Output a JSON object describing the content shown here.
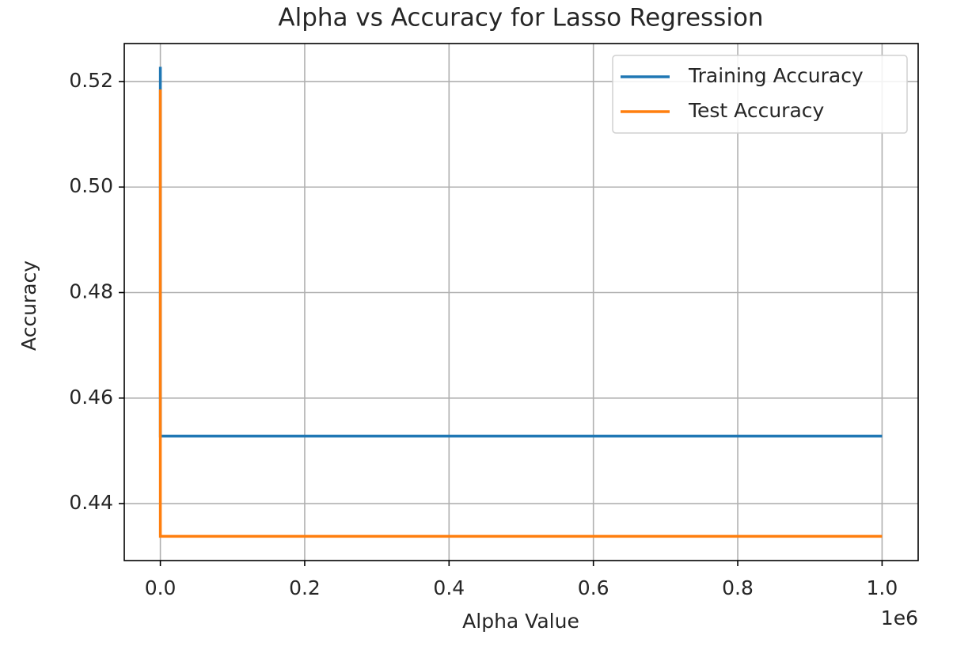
{
  "chart_data": {
    "type": "line",
    "title": "Alpha vs Accuracy for Lasso Regression",
    "x_label": "Alpha Value",
    "y_label": "Accuracy",
    "x_offset_label": "1e6",
    "x": [
      0.001,
      0.01,
      0.1,
      1,
      10,
      100,
      1000,
      10000,
      100000,
      1000000
    ],
    "series": [
      {
        "name": "Training Accuracy",
        "color": "#1f77b4",
        "values": [
          0.5228,
          0.5228,
          0.5226,
          0.4528,
          0.4528,
          0.4528,
          0.4528,
          0.4528,
          0.4528,
          0.4528
        ]
      },
      {
        "name": "Test Accuracy",
        "color": "#ff7f0e",
        "values": [
          0.5185,
          0.5185,
          0.5183,
          0.4338,
          0.4338,
          0.4338,
          0.4338,
          0.4338,
          0.4338,
          0.4338
        ]
      }
    ],
    "xlim": [
      -50000,
      1050000
    ],
    "ylim": [
      0.4292,
      0.5272
    ],
    "xticks": [
      {
        "value": 0,
        "label": "0.0"
      },
      {
        "value": 200000,
        "label": "0.2"
      },
      {
        "value": 400000,
        "label": "0.4"
      },
      {
        "value": 600000,
        "label": "0.6"
      },
      {
        "value": 800000,
        "label": "0.8"
      },
      {
        "value": 1000000,
        "label": "1.0"
      }
    ],
    "yticks": [
      0.44,
      0.46,
      0.48,
      {
        "value": 0.5,
        "label": "0.50"
      },
      0.52
    ],
    "grid": true,
    "legend": "upper-right"
  }
}
